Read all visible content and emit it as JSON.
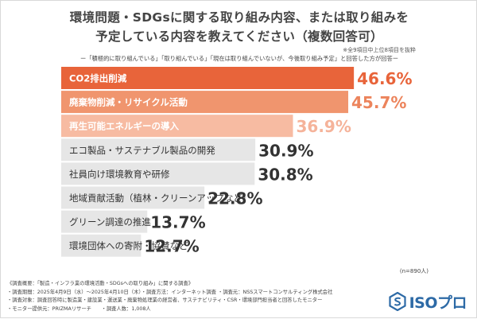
{
  "title": {
    "line1": "環境問題・SDGsに関する取り組み内容、または取り組みを",
    "line2": "予定している内容を教えてください（複数回答可）"
  },
  "note_right": "※全9項目中上位8項目を抜粋",
  "subtitle": "ー「積極的に取り組んでいる」「取り組んでいる」「現在は取り組んでいないが、今後取り組み予定」と回答した方が回答ー",
  "chart_data": {
    "type": "bar",
    "orientation": "horizontal",
    "unit": "%",
    "categories": [
      "CO2排出削減",
      "廃棄物削減・リサイクル活動",
      "再生可能エネルギーの導入",
      "エコ製品・サステナブル製品の開発",
      "社員向け環境教育や研修",
      "地域貢献活動（植林・クリーンアップなど）",
      "グリーン調達の推進",
      "環境団体への寄附・協賛など"
    ],
    "values": [
      46.6,
      45.7,
      36.9,
      30.9,
      30.8,
      22.8,
      13.7,
      12.7
    ],
    "value_labels": [
      "46.6%",
      "45.7%",
      "36.9%",
      "30.9%",
      "30.8%",
      "22.8%",
      "13.7%",
      "12.7%"
    ],
    "colors": {
      "rank1": "#e8643a",
      "rank2": "#f0956e",
      "rank3": "#f7bba2",
      "others": "#e6e6e6",
      "rank1_label": "#e8643a",
      "rank2_label": "#ec845c",
      "rank3_label": "#f5b39a",
      "others_label": "#333333"
    }
  },
  "sample_size": "(n=890人)",
  "survey": [
    "《調査概要：「製造・インフラ業の環境活動・SDGsへの取り組み」に関する調査》",
    "・調査期間：2025年4月9日（水）〜2025年4月10日（木）・調査方法：インターネット調査 ・調査元：NSSスマートコンサルティング株式会社",
    "・調査対象：調査回答時に製造業・建設業・運送業・廃棄物処理業の経営者、サステナビリティ・CSR・環境部門担当者と回答したモニター",
    "・モニター提供元：PRIZMAリサーチ　　・調査人数：1,008人"
  ],
  "logo": {
    "text": "ISOプロ",
    "icon": "hexagon-s-icon",
    "color": "#2d6aa6"
  }
}
